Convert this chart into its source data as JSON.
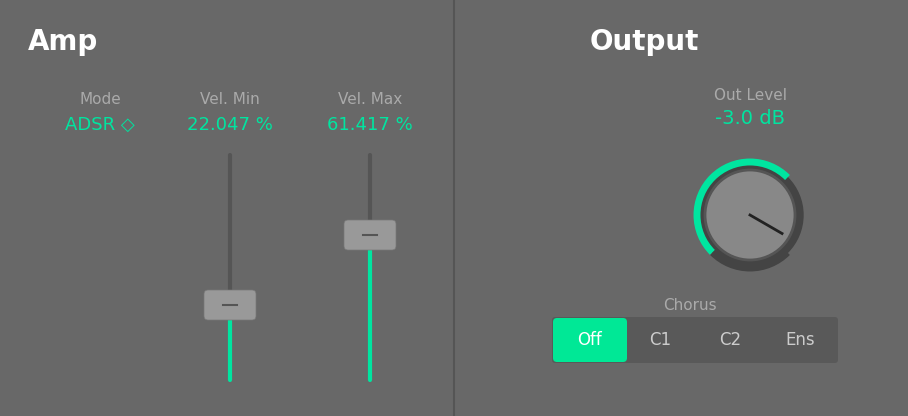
{
  "bg_color": "#6b6b6b",
  "panel_bg": "#6b6b6b",
  "divider_color": "#888888",
  "title_color": "#ffffff",
  "label_color": "#aaaaaa",
  "value_color": "#00e5a0",
  "amp_title": "Amp",
  "output_title": "Output",
  "mode_label": "Mode",
  "mode_value": "ADSR ◇",
  "vel_min_label": "Vel. Min",
  "vel_min_value": "22.047 %",
  "vel_max_label": "Vel. Max",
  "vel_max_value": "61.417 %",
  "out_level_label": "Out Level",
  "out_level_value": "-3.0 dB",
  "chorus_label": "Chorus",
  "chorus_buttons": [
    "Off",
    "C1",
    "C2",
    "Ens"
  ],
  "chorus_active": 0,
  "slider_track_color": "#555555",
  "slider_handle_color": "#999999",
  "slider_green_color": "#00e5a0",
  "knob_bg_color": "#888888",
  "knob_rim_color": "#444444",
  "knob_green_color": "#00e5a0",
  "button_active_color": "#00e896",
  "button_inactive_color": "#595959",
  "button_text_color": "#cccccc",
  "button_active_text": "#ffffff"
}
